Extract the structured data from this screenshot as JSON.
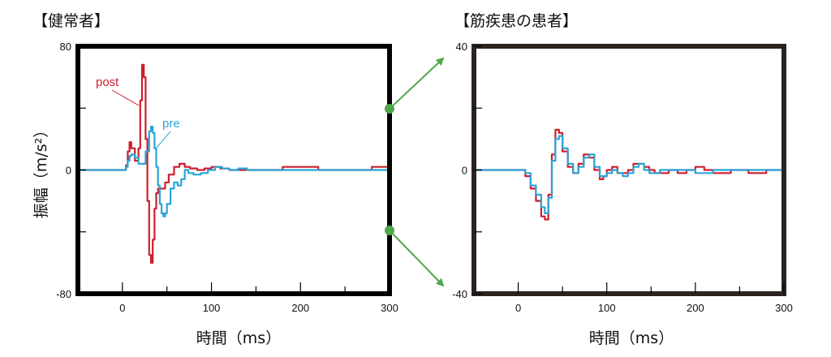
{
  "chart_data": [
    {
      "type": "line",
      "title": "【健常者】",
      "xlabel": "時間（ms）",
      "ylabel": "振幅（m/s²）",
      "xlim": [
        -50,
        300
      ],
      "ylim": [
        -80,
        80
      ],
      "xticks": [
        0,
        100,
        200,
        300
      ],
      "yticks": [
        80,
        0,
        -80
      ],
      "grid": false,
      "series": [
        {
          "name": "post",
          "color": "#cc1f2b",
          "x": [
            -50,
            0,
            4,
            6,
            8,
            10,
            14,
            18,
            20,
            22,
            24,
            26,
            28,
            30,
            32,
            34,
            36,
            38,
            40,
            44,
            48,
            52,
            58,
            64,
            70,
            76,
            84,
            92,
            100,
            110,
            120,
            130,
            140,
            160,
            180,
            200,
            220,
            240,
            260,
            280,
            300
          ],
          "y": [
            0,
            0,
            3,
            12,
            18,
            14,
            6,
            14,
            45,
            68,
            60,
            20,
            -20,
            -55,
            -60,
            -45,
            -25,
            -15,
            -12,
            -12,
            -8,
            -3,
            2,
            4,
            2,
            1,
            0,
            1,
            2,
            1,
            0,
            0,
            0,
            0,
            2,
            2,
            0,
            0,
            0,
            2,
            2
          ]
        },
        {
          "name": "pre",
          "color": "#2aa4d8",
          "x": [
            -50,
            0,
            4,
            6,
            8,
            10,
            14,
            18,
            22,
            26,
            30,
            32,
            34,
            36,
            38,
            40,
            42,
            44,
            46,
            48,
            50,
            54,
            58,
            62,
            66,
            70,
            74,
            80,
            88,
            96,
            104,
            112,
            120,
            130,
            140,
            160,
            180,
            200,
            220,
            240,
            260,
            280,
            300
          ],
          "y": [
            0,
            0,
            2,
            6,
            9,
            10,
            8,
            4,
            4,
            12,
            25,
            28,
            24,
            14,
            2,
            -10,
            -22,
            -28,
            -30,
            -28,
            -22,
            -12,
            -8,
            -10,
            -6,
            0,
            -2,
            -3,
            -2,
            0,
            2,
            1,
            0,
            1,
            0,
            0,
            0,
            0,
            0,
            0,
            0,
            0,
            0
          ]
        }
      ]
    },
    {
      "type": "line",
      "title": "【筋疾患の患者】",
      "xlabel": "時間（ms）",
      "ylabel": "",
      "xlim": [
        -50,
        300
      ],
      "ylim": [
        -40,
        40
      ],
      "xticks": [
        0,
        100,
        200,
        300
      ],
      "yticks": [
        40,
        0,
        -40
      ],
      "grid": false,
      "series": [
        {
          "color": "#cc1f2b",
          "x": [
            -50,
            0,
            8,
            14,
            20,
            26,
            30,
            34,
            38,
            42,
            46,
            50,
            56,
            62,
            68,
            74,
            80,
            86,
            92,
            96,
            100,
            106,
            112,
            118,
            124,
            130,
            136,
            142,
            148,
            154,
            160,
            170,
            180,
            190,
            200,
            210,
            220,
            240,
            260,
            280,
            300
          ],
          "y": [
            0,
            0,
            -2,
            -6,
            -10,
            -15,
            -16,
            -8,
            5,
            13,
            12,
            6,
            1,
            -1,
            2,
            5,
            4,
            0,
            -3,
            -2,
            0,
            1,
            -1,
            -1,
            0,
            2,
            2,
            1,
            0,
            -1,
            -1,
            0,
            -1,
            0,
            1,
            0,
            -1,
            0,
            -1,
            0,
            0
          ]
        },
        {
          "color": "#2aa4d8",
          "x": [
            -50,
            0,
            8,
            14,
            20,
            26,
            30,
            34,
            38,
            42,
            46,
            50,
            56,
            62,
            68,
            74,
            80,
            86,
            92,
            96,
            100,
            106,
            112,
            118,
            124,
            130,
            136,
            142,
            148,
            154,
            160,
            170,
            180,
            190,
            200,
            220,
            240,
            260,
            280,
            300
          ],
          "y": [
            0,
            0,
            -1,
            -5,
            -8,
            -12,
            -14,
            -9,
            3,
            10,
            11,
            7,
            2,
            -1,
            1,
            4,
            5,
            1,
            -2,
            -2,
            -1,
            0,
            -1,
            -2,
            -1,
            1,
            2,
            0,
            -1,
            -1,
            0,
            0,
            0,
            0,
            -1,
            0,
            0,
            0,
            0,
            0
          ]
        }
      ]
    }
  ]
}
